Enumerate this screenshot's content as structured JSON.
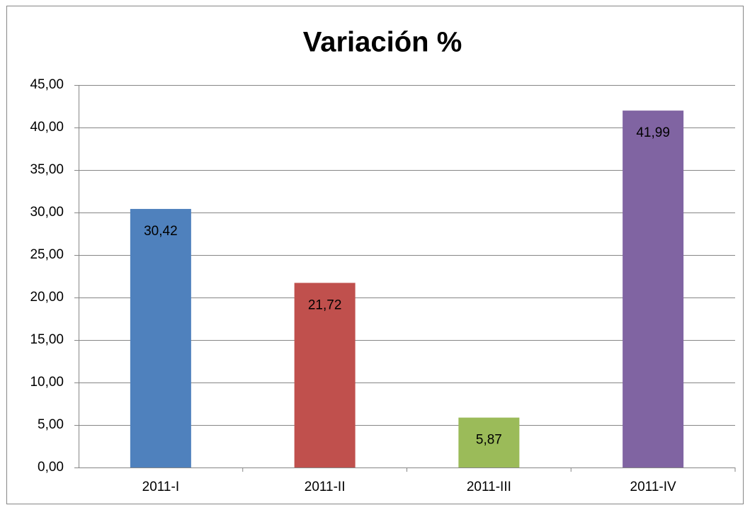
{
  "chart_data": {
    "type": "bar",
    "title": "Variación %",
    "categories": [
      "2011-I",
      "2011-II",
      "2011-III",
      "2011-IV"
    ],
    "values": [
      30.42,
      21.72,
      5.87,
      41.99
    ],
    "value_labels": [
      "30,42",
      "21,72",
      "5,87",
      "41,99"
    ],
    "colors": [
      "#4f81bd",
      "#c0504d",
      "#9bbb59",
      "#8064a2"
    ],
    "ylim": [
      0,
      45
    ],
    "yticks": [
      {
        "value": 0,
        "label": "0,00"
      },
      {
        "value": 5,
        "label": "5,00"
      },
      {
        "value": 10,
        "label": "10,00"
      },
      {
        "value": 15,
        "label": "15,00"
      },
      {
        "value": 20,
        "label": "20,00"
      },
      {
        "value": 25,
        "label": "25,00"
      },
      {
        "value": 30,
        "label": "30,00"
      },
      {
        "value": 35,
        "label": "35,00"
      },
      {
        "value": 40,
        "label": "40,00"
      },
      {
        "value": 45,
        "label": "45,00"
      }
    ],
    "grid": true
  }
}
